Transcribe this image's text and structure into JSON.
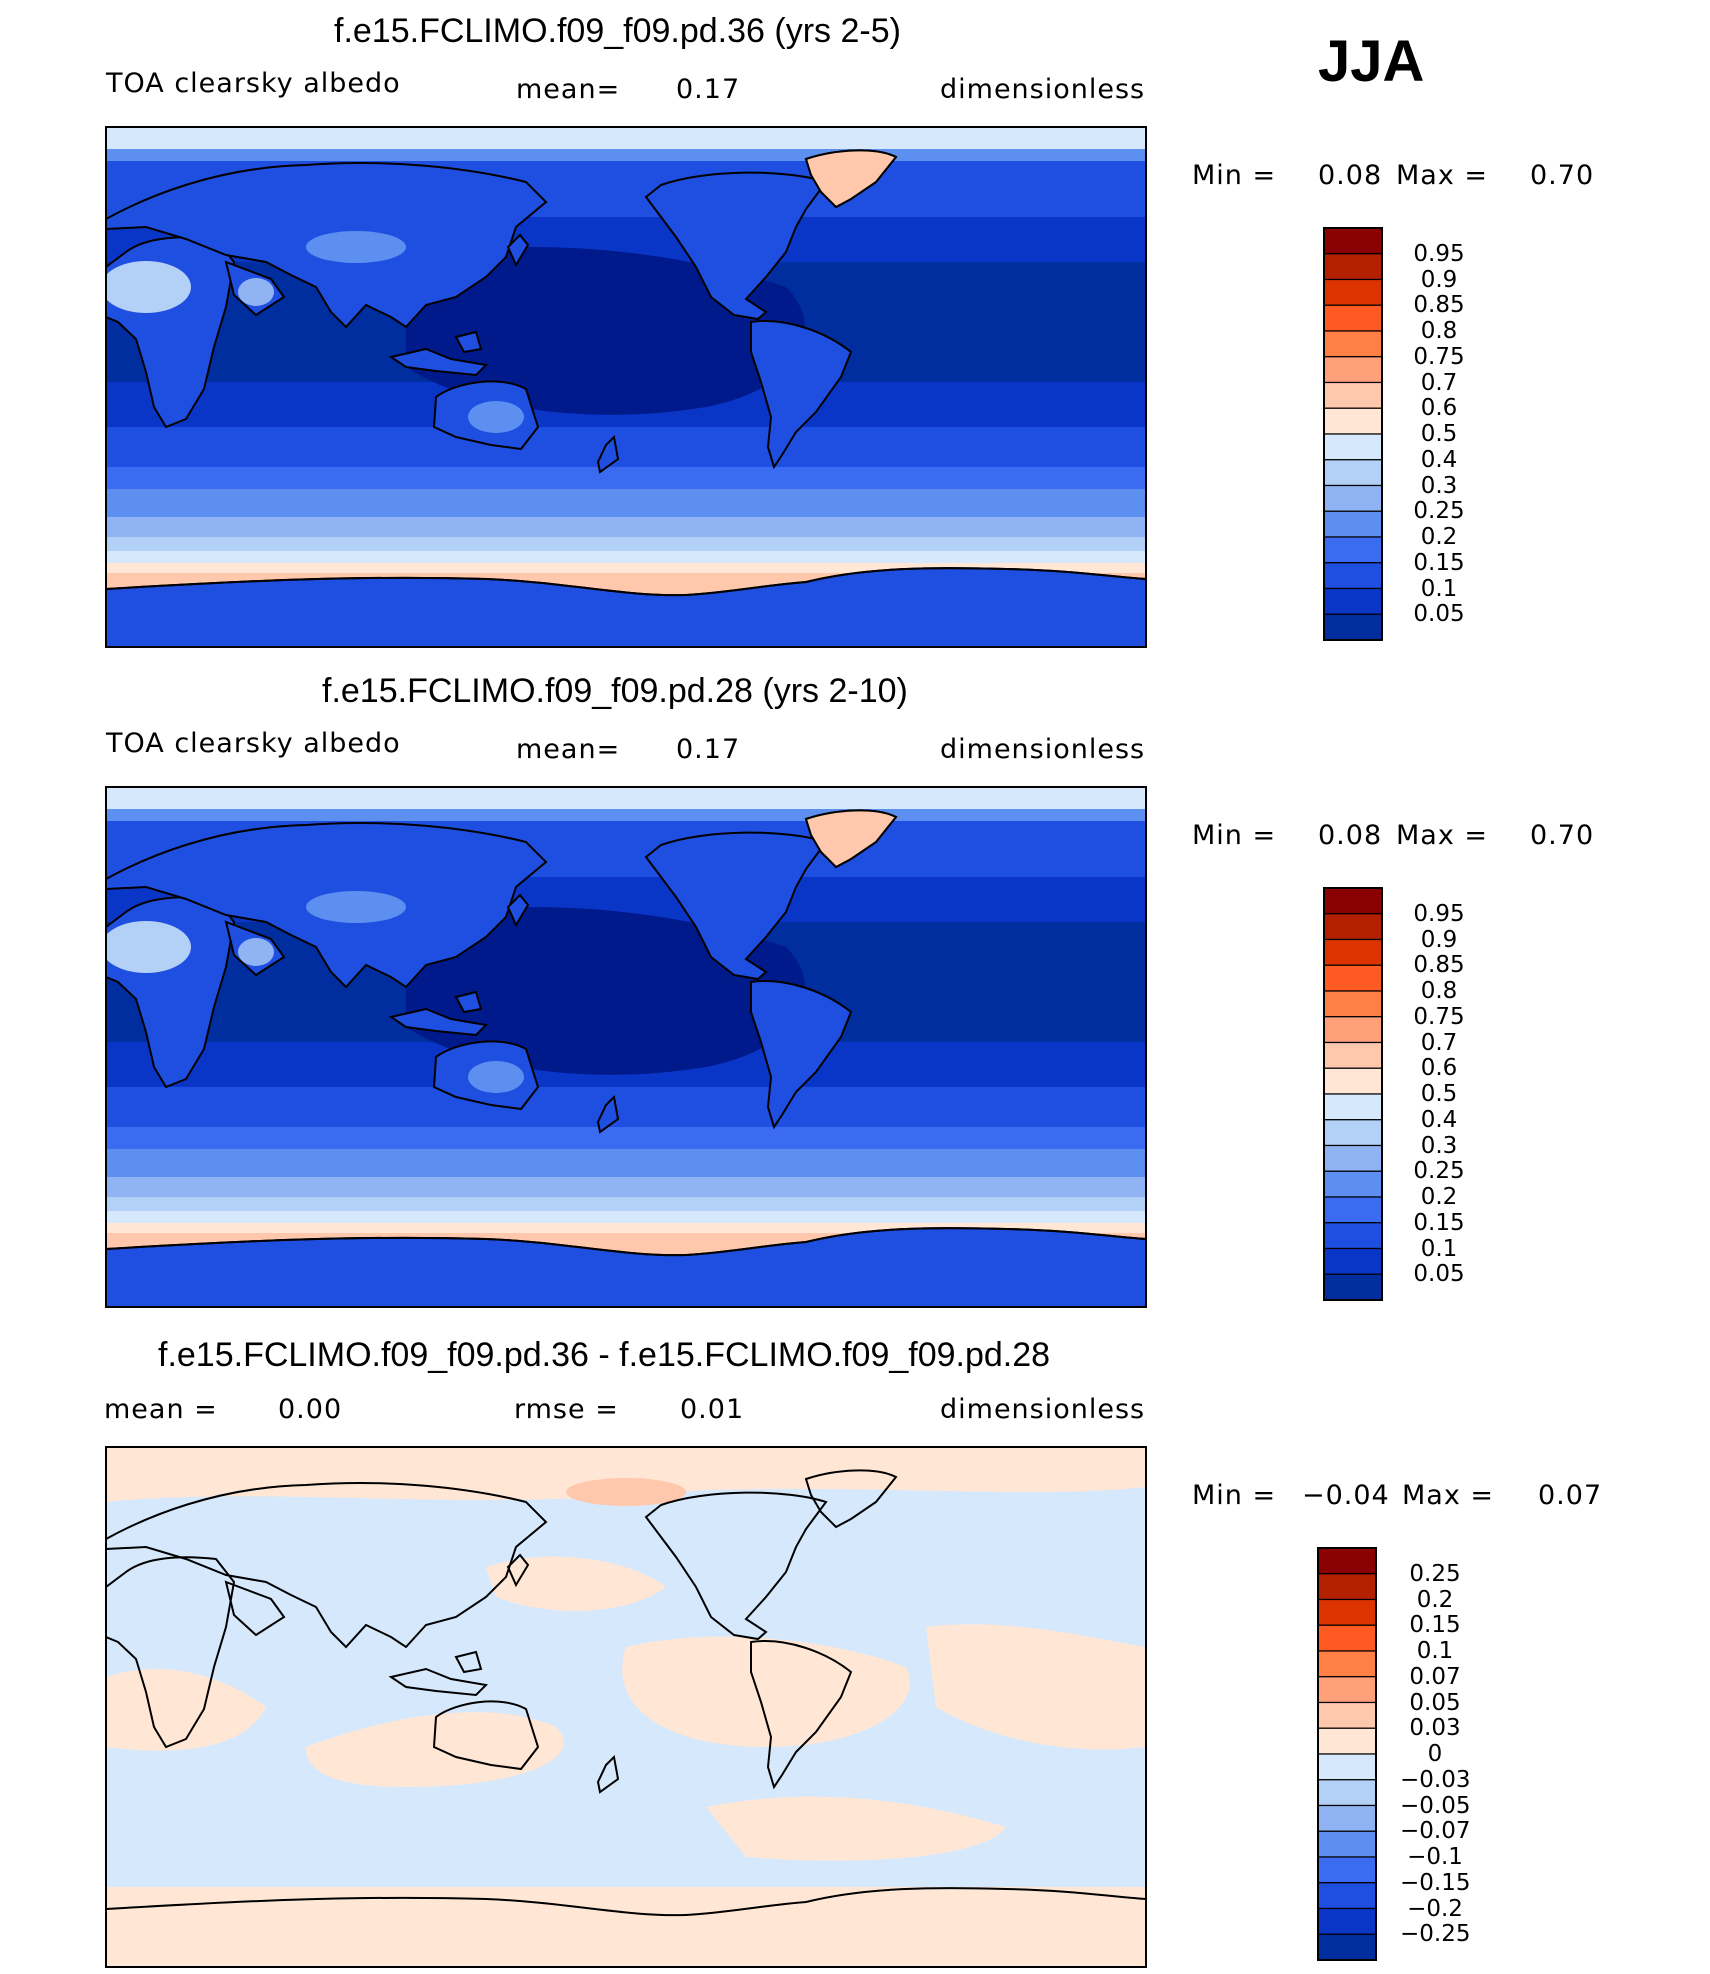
{
  "season": "JJA",
  "panels": [
    {
      "title": "f.e15.FCLIMO.f09_f09.pd.36 (yrs 2-5)",
      "variable": "TOA clearsky albedo",
      "stat_label": "mean=",
      "stat_value": "0.17",
      "units": "dimensionless",
      "min_label": "Min =",
      "min_value": "0.08",
      "max_label": "Max =",
      "max_value": "0.70",
      "colorbar_labels": [
        "0.95",
        "0.9",
        "0.85",
        "0.8",
        "0.75",
        "0.7",
        "0.6",
        "0.5",
        "0.4",
        "0.3",
        "0.25",
        "0.2",
        "0.15",
        "0.1",
        "0.05"
      ]
    },
    {
      "title": "f.e15.FCLIMO.f09_f09.pd.28 (yrs 2-10)",
      "variable": "TOA clearsky albedo",
      "stat_label": "mean=",
      "stat_value": "0.17",
      "units": "dimensionless",
      "min_label": "Min =",
      "min_value": "0.08",
      "max_label": "Max =",
      "max_value": "0.70",
      "colorbar_labels": [
        "0.95",
        "0.9",
        "0.85",
        "0.8",
        "0.75",
        "0.7",
        "0.6",
        "0.5",
        "0.4",
        "0.3",
        "0.25",
        "0.2",
        "0.15",
        "0.1",
        "0.05"
      ]
    },
    {
      "title": "f.e15.FCLIMO.f09_f09.pd.36 - f.e15.FCLIMO.f09_f09.pd.28",
      "mean_label": "mean =",
      "mean_value": "0.00",
      "rmse_label": "rmse =",
      "rmse_value": "0.01",
      "units": "dimensionless",
      "min_label": "Min =",
      "min_value": "−0.04",
      "max_label": "Max =",
      "max_value": "0.07",
      "colorbar_labels": [
        "0.25",
        "0.2",
        "0.15",
        "0.1",
        "0.07",
        "0.05",
        "0.03",
        "0",
        "−0.03",
        "−0.05",
        "−0.07",
        "−0.1",
        "−0.15",
        "−0.2",
        "−0.25"
      ]
    }
  ],
  "colors": {
    "palette": [
      "#8b0000",
      "#b22000",
      "#dd3300",
      "#ff5a22",
      "#ff7f44",
      "#ffa07a",
      "#ffc8ad",
      "#ffe6d5",
      "#d6e8fb",
      "#b3d0f7",
      "#8fb3f3",
      "#5c8ff0",
      "#3b6bf0",
      "#1f4fe0",
      "#0a36c8",
      "#002e9e",
      "#00127d"
    ],
    "albedo_bands": {
      "ice": "#ffc8ad",
      "ice_light": "#ffe6d5",
      "very_light": "#d6e8fb",
      "light": "#b3d0f7",
      "mid_light": "#8fb3f3",
      "mid": "#5c8ff0",
      "blue": "#3b6bf0",
      "darker": "#1f4fe0",
      "deep": "#0a36c8",
      "deepest": "#002e9e"
    },
    "diff_positive": "#ffe6d5",
    "diff_negative": "#d6e8fb",
    "coastline": "#000000"
  }
}
